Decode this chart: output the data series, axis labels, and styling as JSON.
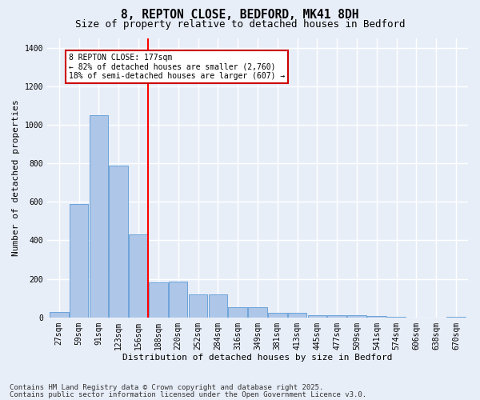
{
  "title": "8, REPTON CLOSE, BEDFORD, MK41 8DH",
  "subtitle": "Size of property relative to detached houses in Bedford",
  "xlabel": "Distribution of detached houses by size in Bedford",
  "ylabel": "Number of detached properties",
  "bins": [
    "27sqm",
    "59sqm",
    "91sqm",
    "123sqm",
    "156sqm",
    "188sqm",
    "220sqm",
    "252sqm",
    "284sqm",
    "316sqm",
    "349sqm",
    "381sqm",
    "413sqm",
    "445sqm",
    "477sqm",
    "509sqm",
    "541sqm",
    "574sqm",
    "606sqm",
    "638sqm",
    "670sqm"
  ],
  "values": [
    27,
    590,
    1050,
    790,
    430,
    180,
    185,
    120,
    120,
    55,
    55,
    25,
    25,
    12,
    12,
    12,
    7,
    5,
    0,
    0,
    5
  ],
  "bar_color": "#aec6e8",
  "bar_edge_color": "#5b9bd5",
  "red_line_x": 4.5,
  "annotation_text": "8 REPTON CLOSE: 177sqm\n← 82% of detached houses are smaller (2,760)\n18% of semi-detached houses are larger (607) →",
  "annotation_box_color": "#ffffff",
  "annotation_box_edge_color": "#cc0000",
  "ylim": [
    0,
    1450
  ],
  "yticks": [
    0,
    200,
    400,
    600,
    800,
    1000,
    1200,
    1400
  ],
  "bg_color": "#e8eef8",
  "grid_color": "#ffffff",
  "footer_line1": "Contains HM Land Registry data © Crown copyright and database right 2025.",
  "footer_line2": "Contains public sector information licensed under the Open Government Licence v3.0.",
  "title_fontsize": 10.5,
  "subtitle_fontsize": 9,
  "axis_label_fontsize": 8,
  "tick_fontsize": 7,
  "annotation_fontsize": 7,
  "footer_fontsize": 6.5
}
